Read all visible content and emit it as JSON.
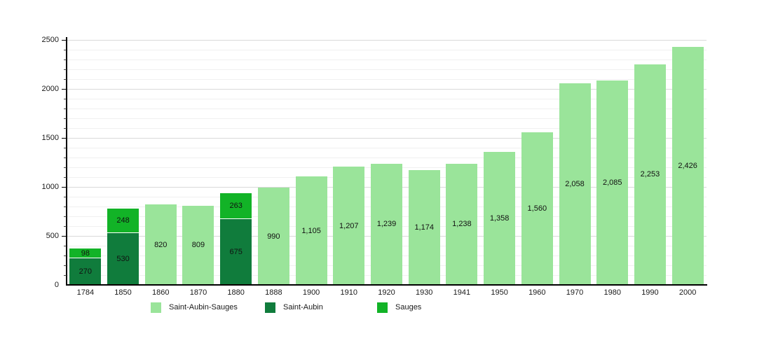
{
  "page": {
    "background": "#ffffff"
  },
  "axis": {
    "line_color": "#000000",
    "major_grid_color": "#d9d9d9",
    "minor_grid_color": "#f0f0f0",
    "text_color": "#1a1a1a"
  },
  "chart_data": {
    "type": "bar",
    "stacked": true,
    "title": "",
    "xlabel": "",
    "ylabel": "",
    "ylim": [
      0,
      2500
    ],
    "yticks": [
      0,
      500,
      1000,
      1500,
      2000,
      2500
    ],
    "ytick_labels": [
      "0",
      "500",
      "1000",
      "1500",
      "2000",
      "2500"
    ],
    "minor_tick_step": 100,
    "grid": true,
    "legend_position": "bottom",
    "categories": [
      "1784",
      "1850",
      "1860",
      "1870",
      "1880",
      "1888",
      "1900",
      "1910",
      "1920",
      "1930",
      "1941",
      "1950",
      "1960",
      "1970",
      "1980",
      "1990",
      "2000"
    ],
    "series": [
      {
        "key": "combined",
        "name": "Saint-Aubin-Sauges",
        "color": "#9ae49a"
      },
      {
        "key": "saint-aubin",
        "name": "Saint-Aubin",
        "color": "#107c3c"
      },
      {
        "key": "sauges",
        "name": "Sauges",
        "color": "#12b327"
      }
    ],
    "bars": [
      {
        "year": "1784",
        "segments": [
          {
            "series_key": "saint-aubin",
            "value": 270,
            "label": "270"
          },
          {
            "series_key": "sauges",
            "value": 98,
            "label": "98"
          }
        ]
      },
      {
        "year": "1850",
        "segments": [
          {
            "series_key": "saint-aubin",
            "value": 530,
            "label": "530"
          },
          {
            "series_key": "sauges",
            "value": 248,
            "label": "248"
          }
        ]
      },
      {
        "year": "1860",
        "segments": [
          {
            "series_key": "combined",
            "value": 820,
            "label": "820"
          }
        ]
      },
      {
        "year": "1870",
        "segments": [
          {
            "series_key": "combined",
            "value": 809,
            "label": "809"
          }
        ]
      },
      {
        "year": "1880",
        "segments": [
          {
            "series_key": "saint-aubin",
            "value": 675,
            "label": "675"
          },
          {
            "series_key": "sauges",
            "value": 263,
            "label": "263"
          }
        ]
      },
      {
        "year": "1888",
        "segments": [
          {
            "series_key": "combined",
            "value": 990,
            "label": "990"
          }
        ]
      },
      {
        "year": "1900",
        "segments": [
          {
            "series_key": "combined",
            "value": 1105,
            "label": "1,105"
          }
        ]
      },
      {
        "year": "1910",
        "segments": [
          {
            "series_key": "combined",
            "value": 1207,
            "label": "1,207"
          }
        ]
      },
      {
        "year": "1920",
        "segments": [
          {
            "series_key": "combined",
            "value": 1239,
            "label": "1,239"
          }
        ]
      },
      {
        "year": "1930",
        "segments": [
          {
            "series_key": "combined",
            "value": 1174,
            "label": "1,174"
          }
        ]
      },
      {
        "year": "1941",
        "segments": [
          {
            "series_key": "combined",
            "value": 1238,
            "label": "1,238"
          }
        ]
      },
      {
        "year": "1950",
        "segments": [
          {
            "series_key": "combined",
            "value": 1358,
            "label": "1,358"
          }
        ]
      },
      {
        "year": "1960",
        "segments": [
          {
            "series_key": "combined",
            "value": 1560,
            "label": "1,560"
          }
        ]
      },
      {
        "year": "1970",
        "segments": [
          {
            "series_key": "combined",
            "value": 2058,
            "label": "2,058"
          }
        ]
      },
      {
        "year": "1980",
        "segments": [
          {
            "series_key": "combined",
            "value": 2085,
            "label": "2,085"
          }
        ]
      },
      {
        "year": "1990",
        "segments": [
          {
            "series_key": "combined",
            "value": 2253,
            "label": "2,253"
          }
        ]
      },
      {
        "year": "2000",
        "segments": [
          {
            "series_key": "combined",
            "value": 2426,
            "label": "2,426"
          }
        ]
      }
    ]
  }
}
